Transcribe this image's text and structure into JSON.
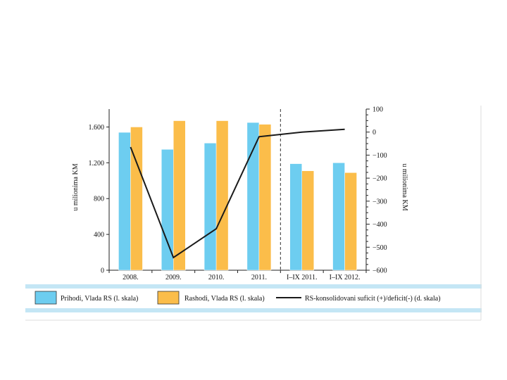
{
  "chart_data": {
    "type": "bar",
    "categories": [
      "2008.",
      "2009.",
      "2010.",
      "2011.",
      "I–IX 2011.",
      "I–IX 2012."
    ],
    "series": [
      {
        "name": "Prihodi, Vlada RS (l. skala)",
        "type": "bar",
        "axis": "left",
        "color": "#6dcdf0",
        "values": [
          1540,
          1350,
          1420,
          1650,
          1190,
          1200
        ]
      },
      {
        "name": "Rashodi, Vlada RS (l. skala)",
        "type": "bar",
        "axis": "left",
        "color": "#fbbd4a",
        "values": [
          1600,
          1670,
          1670,
          1630,
          1110,
          1090
        ]
      },
      {
        "name": "RS-konsolidovani suficit (+)/deficit(-) (d. skala)",
        "type": "line",
        "axis": "right",
        "color": "#1a1a1a",
        "values": [
          -65,
          -545,
          -420,
          -20,
          0,
          12
        ]
      }
    ],
    "ylabel_left": "u milionima KM",
    "ylabel_right": "u milionima KM",
    "ylim_left": [
      0,
      1800
    ],
    "ylim_right": [
      -600,
      100
    ],
    "yticks_left": [
      0,
      400,
      800,
      1200,
      1600
    ],
    "ytick_labels_left": [
      "0",
      "400",
      "800",
      "1.200",
      "1.600"
    ],
    "yticks_right": [
      -600,
      -500,
      -400,
      -300,
      -200,
      -100,
      0,
      100
    ],
    "ytick_labels_right": [
      "−600",
      "−500",
      "−400",
      "−300",
      "−200",
      "−100",
      "0",
      "100"
    ],
    "divider_after_index": 3,
    "legend_position": "bottom",
    "grid": false
  },
  "colors": {
    "band": "#c4e6f5",
    "axis": "#222222"
  }
}
